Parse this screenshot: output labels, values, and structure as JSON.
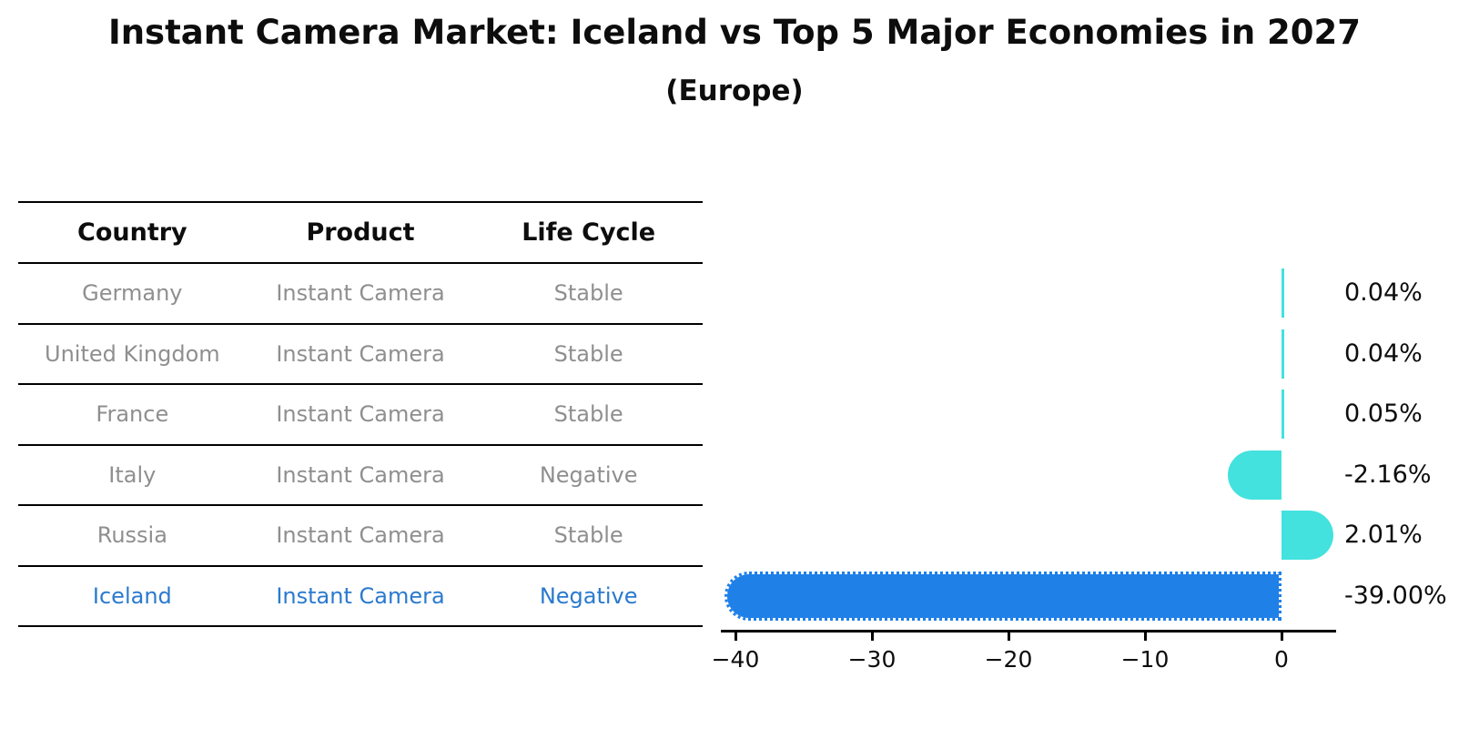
{
  "title": "Instant Camera Market: Iceland vs Top 5 Major Economies in 2027",
  "subtitle": "(Europe)",
  "table": {
    "headers": [
      "Country",
      "Product",
      "Life Cycle"
    ],
    "rows": [
      {
        "country": "Germany",
        "product": "Instant Camera",
        "life_cycle": "Stable"
      },
      {
        "country": "United Kingdom",
        "product": "Instant Camera",
        "life_cycle": "Stable"
      },
      {
        "country": "France",
        "product": "Instant Camera",
        "life_cycle": "Stable"
      },
      {
        "country": "Italy",
        "product": "Instant Camera",
        "life_cycle": "Negative"
      },
      {
        "country": "Russia",
        "product": "Instant Camera",
        "life_cycle": "Stable"
      },
      {
        "country": "Iceland",
        "product": "Instant Camera",
        "life_cycle": "Negative"
      }
    ],
    "highlighted_row": "Iceland"
  },
  "chart_data": {
    "type": "bar",
    "orientation": "horizontal",
    "title": "Instant Camera Market: Iceland vs Top 5 Major Economies in 2027",
    "subtitle": "(Europe)",
    "categories": [
      "Germany",
      "United Kingdom",
      "France",
      "Italy",
      "Russia",
      "Iceland"
    ],
    "values": [
      0.04,
      0.04,
      0.05,
      -2.16,
      2.01,
      -39.0
    ],
    "value_labels": [
      "0.04%",
      "0.04%",
      "0.05%",
      "-2.16%",
      "2.01%",
      "-39.00%"
    ],
    "x_ticks": [
      -40,
      -30,
      -20,
      -10,
      0
    ],
    "x_tick_labels": [
      "−40",
      "−30",
      "−20",
      "−10",
      "0"
    ],
    "xlim": [
      -41,
      4
    ],
    "grid": false,
    "legend": false,
    "colors": {
      "bar_default": "#43E2DE",
      "bar_highlight": "#1F80E8",
      "highlight_text": "#2A7ACE",
      "table_text": "#8F8F8F",
      "text": "#000000"
    }
  }
}
